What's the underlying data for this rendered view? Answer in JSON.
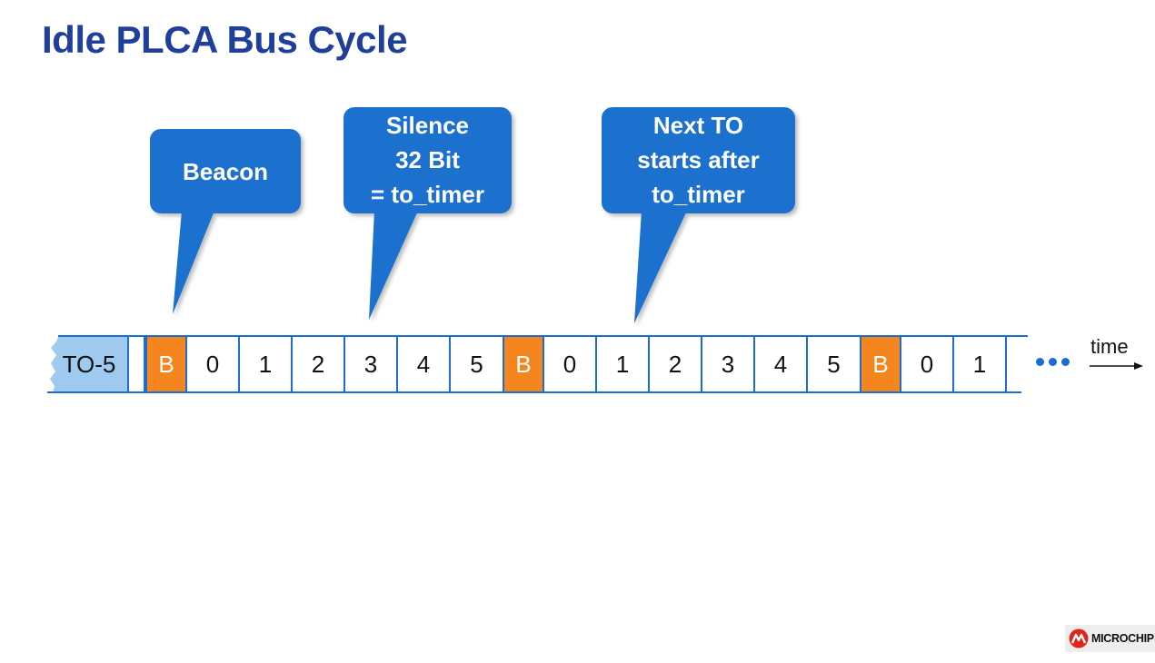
{
  "title": "Idle PLCA Bus Cycle",
  "colors": {
    "title": "#1f3f9a",
    "callout": "#1a6fce",
    "beacon": "#f5861f",
    "to_cell": "#9fcaf0",
    "line": "#1a6fce"
  },
  "callouts": [
    {
      "id": "beacon",
      "lines": [
        "Beacon"
      ]
    },
    {
      "id": "silence",
      "lines": [
        "Silence",
        "32 Bit",
        "= to_timer"
      ]
    },
    {
      "id": "next_to",
      "lines": [
        "Next TO",
        "starts after",
        "to_timer"
      ]
    }
  ],
  "timeline": {
    "first_label": "TO-5",
    "cells": [
      "",
      "B",
      "0",
      "1",
      "2",
      "3",
      "4",
      "5",
      "B",
      "0",
      "1",
      "2",
      "3",
      "4",
      "5",
      "B",
      "0",
      "1"
    ],
    "ellipsis_icon": "ellipsis-icon",
    "time_label": "time",
    "arrow_icon": "arrow-right-icon"
  },
  "logo": {
    "text": "MICROCHIP",
    "icon": "microchip-logo-icon"
  }
}
